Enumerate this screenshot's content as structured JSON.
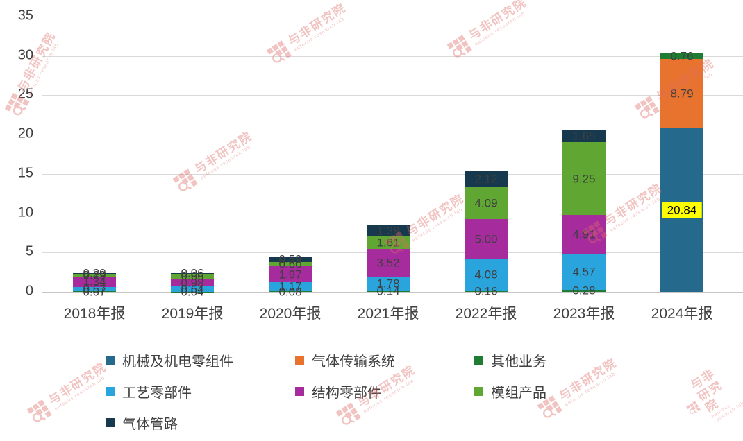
{
  "watermark": {
    "title": "与非研究院",
    "subtitle": "eefocus research lab"
  },
  "chart_data": {
    "type": "bar",
    "stacked": true,
    "title": "",
    "xlabel": "",
    "ylabel": "",
    "categories": [
      "2018年报",
      "2019年报",
      "2020年报",
      "2021年报",
      "2022年报",
      "2023年报",
      "2024年报"
    ],
    "series": [
      {
        "name": "机械及机电零组件",
        "color": "#25698c",
        "values": [
          0,
          0,
          0,
          0,
          0,
          0,
          20.84
        ]
      },
      {
        "name": "气体传输系统",
        "color": "#e8732e",
        "values": [
          0,
          0,
          0,
          0,
          0,
          0,
          8.79
        ]
      },
      {
        "name": "其他业务",
        "color": "#1e7c33",
        "values": [
          0.07,
          0.04,
          0.08,
          0.14,
          0.16,
          0.28,
          0.76
        ]
      },
      {
        "name": "工艺零部件",
        "color": "#29a4dd",
        "values": [
          0.57,
          0.64,
          1.17,
          1.78,
          4.08,
          4.57,
          0
        ]
      },
      {
        "name": "结构零部件",
        "color": "#a62c9e",
        "values": [
          1.34,
          0.98,
          1.97,
          3.52,
          5.0,
          4.91,
          0
        ]
      },
      {
        "name": "模组产品",
        "color": "#5fa732",
        "values": [
          0.29,
          0.66,
          0.6,
          1.61,
          4.09,
          9.25,
          0
        ]
      },
      {
        "name": "气体管路",
        "color": "#17394e",
        "values": [
          0.2,
          0.06,
          0.59,
          1.38,
          2.12,
          1.65,
          0
        ]
      }
    ],
    "ylim": [
      0,
      35
    ],
    "yticks": [
      0,
      5,
      10,
      15,
      20,
      25,
      30,
      35
    ],
    "grid": true,
    "legend_position": "bottom-left",
    "value_labels": "2dp",
    "highlight": {
      "series": "机械及机电零组件",
      "category": "2024年报",
      "bg": "#ffff00"
    }
  }
}
